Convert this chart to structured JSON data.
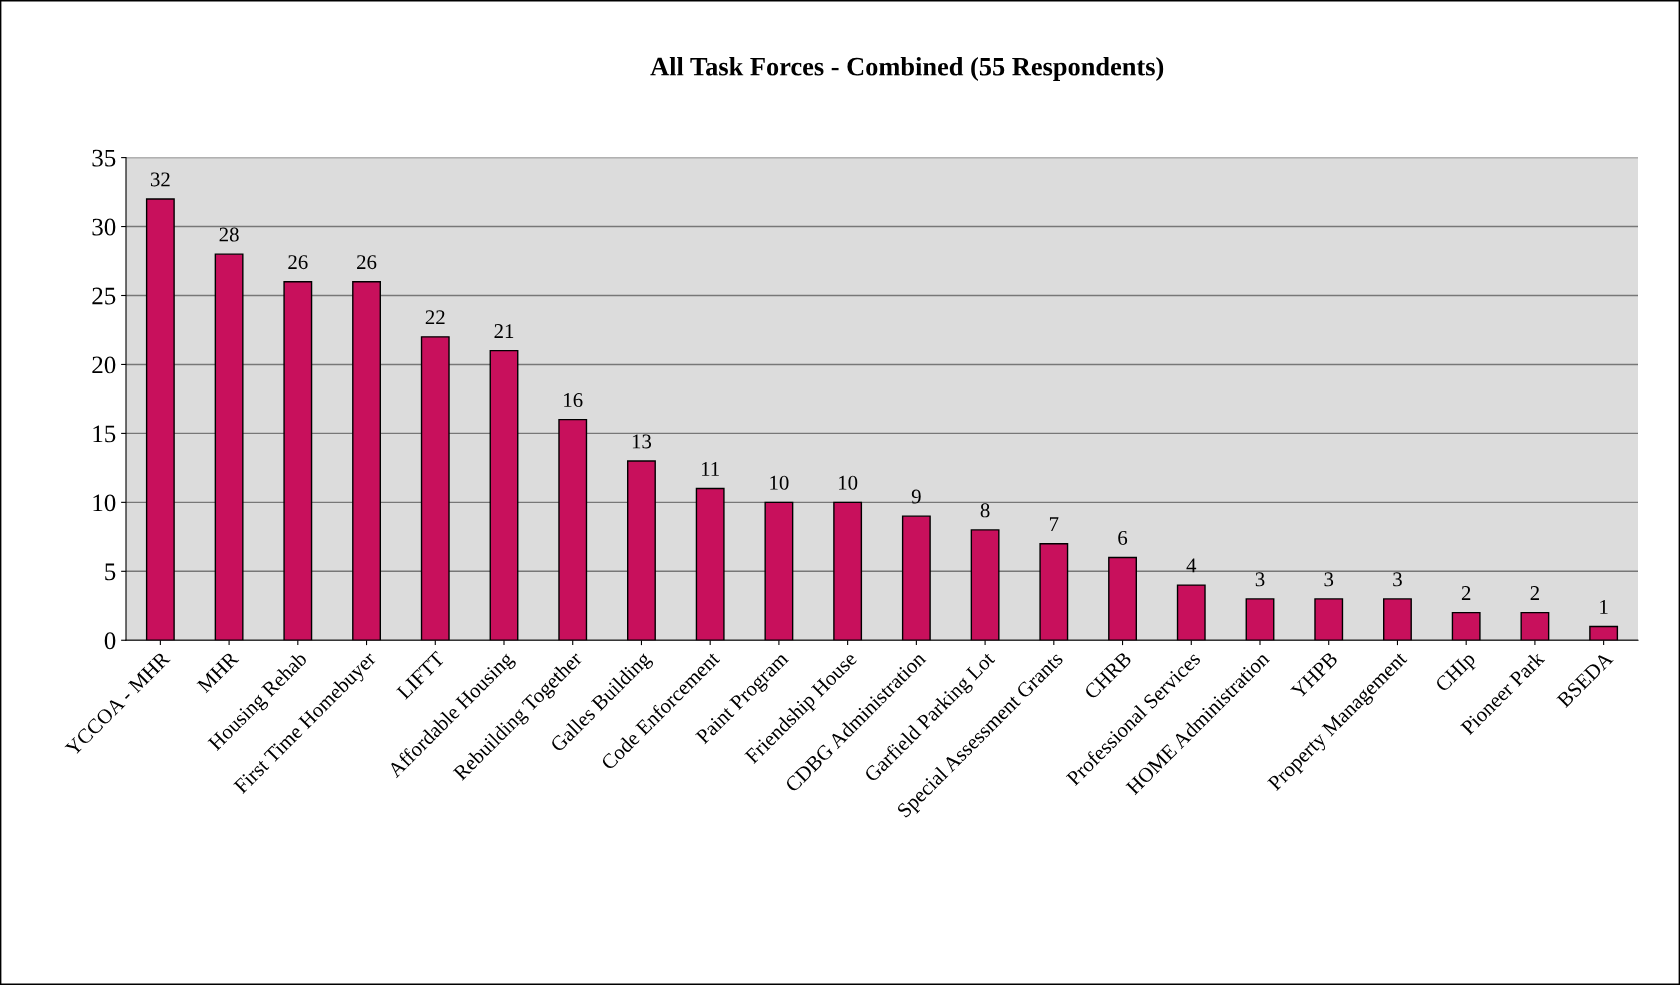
{
  "chart_data": {
    "type": "bar",
    "title": "All Task Forces - Combined (55 Respondents)",
    "categories": [
      "YCCOA - MHR",
      "MHR",
      "Housing Rehab",
      "First Time Homebuyer",
      "LIFTT",
      "Affordable Housing",
      "Rebuilding Together",
      "Galles Building",
      "Code Enforcement",
      "Paint Program",
      "Friendship House",
      "CDBG Administration",
      "Garfield Parking Lot",
      "Special Assessment Grants",
      "CHRB",
      "Professional Services",
      "HOME Administration",
      "YHPB",
      "Property Management",
      "CHIp",
      "Pioneer Park",
      "BSEDA"
    ],
    "values": [
      32,
      28,
      26,
      26,
      22,
      21,
      16,
      13,
      11,
      10,
      10,
      9,
      8,
      7,
      6,
      4,
      3,
      3,
      3,
      2,
      2,
      1
    ],
    "color": "#c8105c",
    "ylim": [
      0,
      35
    ],
    "yticks": [
      0,
      5,
      10,
      15,
      20,
      25,
      30,
      35
    ],
    "grid": "y",
    "data_labels": true
  }
}
